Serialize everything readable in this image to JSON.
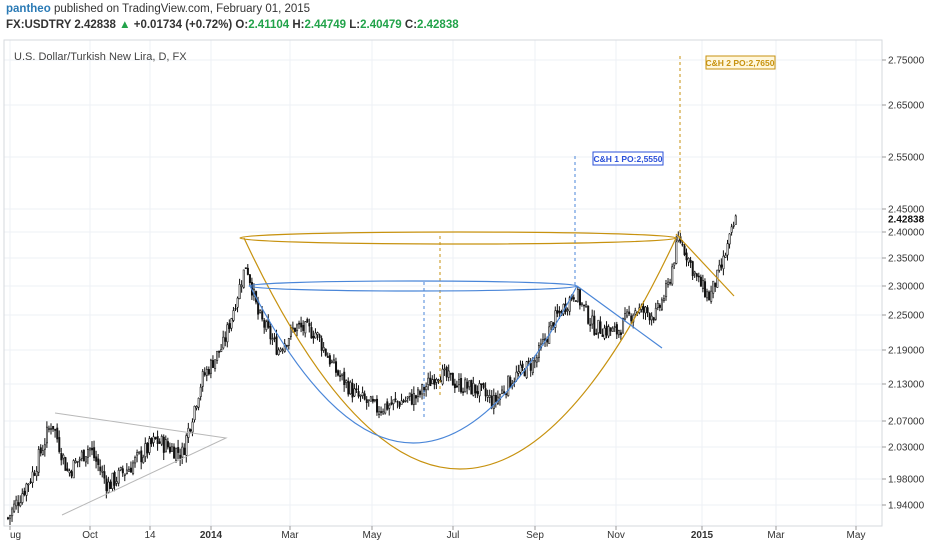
{
  "header": {
    "username": "pantheo",
    "published_text": "published on TradingView.com, February 01, 2015",
    "symbol": "FX:USDTRY",
    "last_price": "2.42838",
    "change_arrow": "▲",
    "change_text": "+0.01734 (+0.72%)",
    "open_label": "O:",
    "open_value": "2.41104",
    "high_label": "H:",
    "high_value": "2.44749",
    "low_label": "L:",
    "low_value": "2.40479",
    "close_label": "C:",
    "close_value": "2.42838"
  },
  "chart_data": {
    "type": "candlestick",
    "title": "U.S. Dollar/Turkish New Lira, D, FX",
    "x_tick_labels": [
      "ug",
      "Oct",
      "14",
      "2014",
      "Mar",
      "May",
      "Jul",
      "Sep",
      "Nov",
      "2015",
      "Mar",
      "May"
    ],
    "y_tick_labels": [
      "2.75000",
      "2.65000",
      "2.55000",
      "2.45000",
      "2.40000",
      "2.35000",
      "2.30000",
      "2.25000",
      "2.19000",
      "2.13000",
      "2.07000",
      "2.03000",
      "1.98000",
      "1.94000"
    ],
    "price_axis_label": "2.42838",
    "annotations": [
      {
        "text": "C&H 1 PO:2,5550",
        "color": "#2b50d8"
      },
      {
        "text": "C&H 2 PO:2,7650",
        "color": "#c7920f"
      }
    ],
    "series_close_approx": [
      [
        "2013-08-01",
        1.92
      ],
      [
        "2013-08-20",
        1.99
      ],
      [
        "2013-09-03",
        2.07
      ],
      [
        "2013-09-15",
        1.99
      ],
      [
        "2013-10-01",
        2.03
      ],
      [
        "2013-10-15",
        1.97
      ],
      [
        "2013-11-01",
        2.0
      ],
      [
        "2013-11-20",
        2.04
      ],
      [
        "2013-12-10",
        2.02
      ],
      [
        "2013-12-25",
        2.14
      ],
      [
        "2014-01-10",
        2.2
      ],
      [
        "2014-01-27",
        2.34
      ],
      [
        "2014-02-05",
        2.25
      ],
      [
        "2014-02-20",
        2.19
      ],
      [
        "2014-03-05",
        2.23
      ],
      [
        "2014-03-20",
        2.22
      ],
      [
        "2014-04-05",
        2.15
      ],
      [
        "2014-04-20",
        2.11
      ],
      [
        "2014-05-05",
        2.09
      ],
      [
        "2014-05-20",
        2.1
      ],
      [
        "2014-06-05",
        2.11
      ],
      [
        "2014-06-20",
        2.15
      ],
      [
        "2014-07-05",
        2.13
      ],
      [
        "2014-07-20",
        2.12
      ],
      [
        "2014-08-01",
        2.1
      ],
      [
        "2014-08-15",
        2.14
      ],
      [
        "2014-09-01",
        2.17
      ],
      [
        "2014-09-15",
        2.24
      ],
      [
        "2014-10-01",
        2.29
      ],
      [
        "2014-10-15",
        2.23
      ],
      [
        "2014-11-01",
        2.22
      ],
      [
        "2014-11-15",
        2.26
      ],
      [
        "2014-12-01",
        2.25
      ],
      [
        "2014-12-10",
        2.3
      ],
      [
        "2014-12-18",
        2.39
      ],
      [
        "2015-01-01",
        2.31
      ],
      [
        "2015-01-10",
        2.28
      ],
      [
        "2015-01-20",
        2.34
      ],
      [
        "2015-01-30",
        2.43
      ]
    ],
    "colors": {
      "candle": "#111111",
      "blue_pattern": "#4a86d8",
      "gold_pattern": "#c7920f",
      "triangle": "#b8b8b8",
      "grid": "#eef1f5",
      "axis_text": "#333333"
    }
  }
}
